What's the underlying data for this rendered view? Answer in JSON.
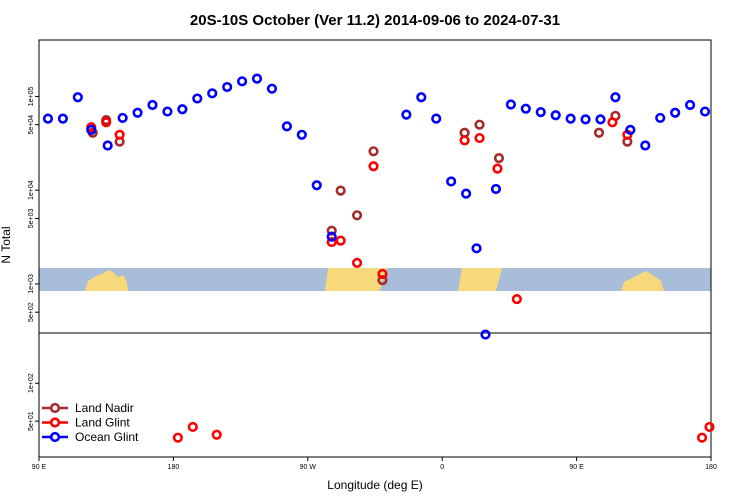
{
  "chart_data": {
    "type": "scatter",
    "title": "20S-10S October (Ver 11.2)   2014-09-06 to 2024-07-31",
    "xlabel": "Longitude (deg E)",
    "ylabel": "N Total",
    "x_ticks": [
      {
        "label": "90 E",
        "value": 90
      },
      {
        "label": "180",
        "value": 180
      },
      {
        "label": "90 W",
        "value": 270
      },
      {
        "label": "0",
        "value": 360
      },
      {
        "label": "90 E",
        "value": 450
      },
      {
        "label": "180",
        "value": 540
      }
    ],
    "xlim": [
      90,
      540
    ],
    "y_upper_ticks": [
      {
        "label": "1e+05",
        "value": 100000
      },
      {
        "label": "5e+04",
        "value": 50000
      },
      {
        "label": "1e+04",
        "value": 10000
      },
      {
        "label": "5e+03",
        "value": 5000
      },
      {
        "label": "1e+03",
        "value": 1000
      },
      {
        "label": "5e+02",
        "value": 500
      }
    ],
    "y_lower_ticks": [
      {
        "label": "1e+02",
        "value": 100
      },
      {
        "label": "5e+01",
        "value": 50
      }
    ],
    "log_scale": true,
    "grid": false,
    "legend_position": "bottom-left",
    "colors": {
      "Land Nadir": "#a52a2a",
      "Land Glint": "#ff0000",
      "Ocean Glint": "#0000ff",
      "ocean_band": "#a8bdd9",
      "land_band": "#f7d87a"
    },
    "series": [
      {
        "name": "Land Nadir",
        "color": "#a52a2a",
        "points": [
          [
            126,
            41000
          ],
          [
            135,
            56000
          ],
          [
            144,
            33000
          ],
          [
            286,
            3700
          ],
          [
            292,
            9900
          ],
          [
            303,
            5400
          ],
          [
            314,
            26000
          ],
          [
            320,
            1100
          ],
          [
            375,
            41000
          ],
          [
            385,
            50000
          ],
          [
            398,
            22000
          ],
          [
            465,
            41000
          ],
          [
            476,
            62000
          ],
          [
            484,
            33000
          ]
        ]
      },
      {
        "name": "Land Glint",
        "color": "#ff0000",
        "points": [
          [
            125,
            47000
          ],
          [
            135,
            53000
          ],
          [
            144,
            39000
          ],
          [
            286,
            2800
          ],
          [
            292,
            2900
          ],
          [
            303,
            1680
          ],
          [
            314,
            18000
          ],
          [
            320,
            1280
          ],
          [
            375,
            34000
          ],
          [
            385,
            36000
          ],
          [
            397,
            17000
          ],
          [
            474,
            53000
          ],
          [
            484,
            39000
          ],
          [
            410,
            690
          ],
          [
            183,
            37
          ],
          [
            193,
            45
          ],
          [
            209,
            39
          ],
          [
            539,
            45
          ],
          [
            534,
            37
          ]
        ]
      },
      {
        "name": "Ocean Glint",
        "color": "#0000ff",
        "points": [
          [
            96,
            58000
          ],
          [
            106,
            58000
          ],
          [
            116,
            98000
          ],
          [
            125,
            44000
          ],
          [
            136,
            30000
          ],
          [
            146,
            59000
          ],
          [
            156,
            67000
          ],
          [
            166,
            81000
          ],
          [
            176,
            69000
          ],
          [
            186,
            73000
          ],
          [
            196,
            95000
          ],
          [
            206,
            108000
          ],
          [
            216,
            126000
          ],
          [
            226,
            145000
          ],
          [
            236,
            155000
          ],
          [
            246,
            121000
          ],
          [
            256,
            48000
          ],
          [
            266,
            39000
          ],
          [
            276,
            11300
          ],
          [
            286,
            3200
          ],
          [
            336,
            64000
          ],
          [
            346,
            98000
          ],
          [
            356,
            58000
          ],
          [
            366,
            12400
          ],
          [
            376,
            9200
          ],
          [
            383,
            2400
          ],
          [
            389,
            243
          ],
          [
            396,
            10300
          ],
          [
            406,
            82000
          ],
          [
            416,
            74000
          ],
          [
            426,
            68000
          ],
          [
            436,
            63000
          ],
          [
            446,
            58000
          ],
          [
            456,
            57000
          ],
          [
            466,
            57000
          ],
          [
            476,
            98000
          ],
          [
            486,
            44000
          ],
          [
            496,
            30000
          ],
          [
            506,
            59000
          ],
          [
            516,
            67000
          ],
          [
            526,
            81000
          ],
          [
            536,
            69000
          ]
        ]
      }
    ]
  }
}
